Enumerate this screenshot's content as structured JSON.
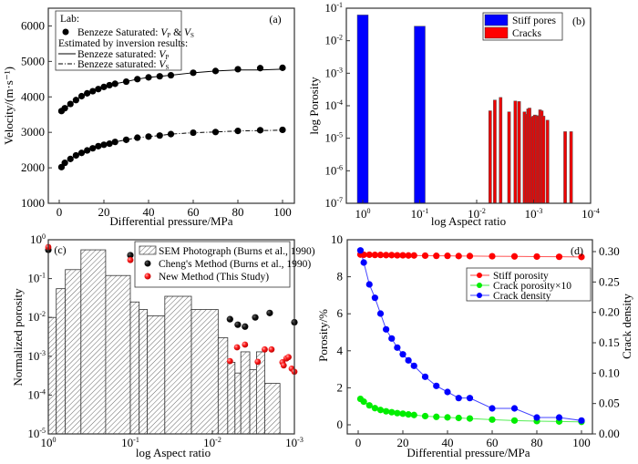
{
  "chart_data": [
    {
      "panel": "(a)",
      "type": "line",
      "xlabel": "Differential pressure/MPa",
      "ylabel": "Velocity/(m·s⁻¹)",
      "xlim": [
        0,
        100
      ],
      "ylim": [
        1000,
        6500
      ],
      "xticks": [
        0,
        20,
        40,
        60,
        80,
        100
      ],
      "yticks": [
        1000,
        2000,
        3000,
        4000,
        5000,
        6000
      ],
      "legend": {
        "position": "top-left",
        "title": "Lab:",
        "entries": [
          {
            "label": "Benzeze Saturated: VP & VS",
            "marker": "black-dot"
          },
          {
            "label": "Estimated by inversion results:",
            "marker": "none"
          },
          {
            "label": "Benzeze saturated: VP",
            "marker": "solid-line"
          },
          {
            "label": "Benzeze saturated: VS",
            "marker": "dash-dot-line"
          }
        ]
      },
      "x": [
        1,
        2.5,
        5,
        7.5,
        10,
        12.5,
        15,
        17.5,
        20,
        22.5,
        25,
        30,
        35,
        40,
        45,
        50,
        60,
        70,
        80,
        90,
        100
      ],
      "series": [
        {
          "name": "Lab VP",
          "values": [
            3600,
            3680,
            3800,
            3910,
            4020,
            4100,
            4160,
            4220,
            4280,
            4330,
            4370,
            4430,
            4500,
            4550,
            4580,
            4610,
            4680,
            4730,
            4780,
            4810,
            4820
          ]
        },
        {
          "name": "Inversion VP",
          "values": [
            3600,
            3680,
            3800,
            3910,
            4020,
            4100,
            4160,
            4220,
            4280,
            4330,
            4370,
            4430,
            4500,
            4550,
            4580,
            4610,
            4680,
            4730,
            4760,
            4760,
            4780
          ]
        },
        {
          "name": "Lab VS",
          "values": [
            2020,
            2140,
            2250,
            2350,
            2420,
            2490,
            2550,
            2610,
            2650,
            2680,
            2730,
            2790,
            2850,
            2880,
            2910,
            2950,
            2990,
            3010,
            3040,
            3060,
            3070
          ]
        },
        {
          "name": "Inversion VS",
          "values": [
            2020,
            2140,
            2250,
            2350,
            2420,
            2490,
            2550,
            2610,
            2650,
            2680,
            2730,
            2790,
            2850,
            2880,
            2910,
            2950,
            2990,
            3010,
            3040,
            3050,
            3060
          ]
        }
      ]
    },
    {
      "panel": "(b)",
      "type": "bar",
      "xlabel": "log Aspect ratio",
      "ylabel": "log Porosity",
      "xscale": "log-reversed",
      "xlim": [
        1,
        0.0001
      ],
      "ylim": [
        1e-07,
        0.1
      ],
      "xticks": [
        "10⁰",
        "10⁻¹",
        "10⁻²",
        "10⁻³",
        "10⁻⁴"
      ],
      "yticks": [
        "10⁻¹",
        "10⁻²",
        "10⁻³",
        "10⁻⁴",
        "10⁻⁵",
        "10⁻⁶",
        "10⁻⁷"
      ],
      "legend": {
        "position": "top-right",
        "entries": [
          {
            "label": "Stiff pores",
            "color": "#0000ff"
          },
          {
            "label": "Cracks",
            "color": "#ff0000"
          }
        ]
      },
      "series": [
        {
          "name": "Stiff pores",
          "aspect_ratio": [
            1.0,
            0.1
          ],
          "values": [
            0.062,
            0.028
          ]
        },
        {
          "name": "Cracks",
          "aspect_ratio": [
            0.0058,
            0.0048,
            0.0038,
            0.0027,
            0.0021,
            0.0018,
            0.00145,
            0.00135,
            0.00125,
            0.00118,
            0.00108,
            0.00101,
            0.00095,
            0.00088,
            0.00083,
            0.00077,
            0.00072,
            0.00067,
            0.00057,
            0.00028,
            0.00022
          ],
          "values": [
            7e-05,
            0.00015,
            0.00018,
            6.5e-05,
            0.00014,
            0.000135,
            6.5e-05,
            5.5e-05,
            8e-05,
            8.5e-05,
            4.5e-05,
            4.8e-05,
            5.2e-05,
            5e-05,
            4.8e-05,
            7.5e-05,
            7e-05,
            4.8e-05,
            3.6e-05,
            1.6e-05,
            1.6e-05
          ]
        }
      ]
    },
    {
      "panel": "(c)",
      "type": "bar",
      "xlabel": "log Aspect ratio",
      "ylabel": "Normalized porosity",
      "xscale": "log-reversed",
      "xlim": [
        1,
        0.001
      ],
      "ylim": [
        1e-05,
        1
      ],
      "xticks": [
        "10⁰",
        "10⁻¹",
        "10⁻²",
        "10⁻³"
      ],
      "yticks": [
        "10⁰",
        "10⁻¹",
        "10⁻²",
        "10⁻³",
        "10⁻⁴",
        "10⁻⁵"
      ],
      "legend": {
        "position": "top-right",
        "entries": [
          {
            "label": "SEM Photograph (Burns et al., 1990)",
            "marker": "hatched-box"
          },
          {
            "label": "Cheng's Method (Burns et al., 1990)",
            "marker": "black-dot"
          },
          {
            "label": "New Method (This Study)",
            "marker": "red-dot"
          }
        ]
      },
      "sem_histogram": {
        "bins_aspect_ratio": [
          [
            1.0,
            0.8
          ],
          [
            0.8,
            0.62
          ],
          [
            0.62,
            0.4
          ],
          [
            0.4,
            0.2
          ],
          [
            0.2,
            0.1
          ],
          [
            0.1,
            0.078
          ],
          [
            0.078,
            0.062
          ],
          [
            0.062,
            0.038
          ],
          [
            0.038,
            0.018
          ],
          [
            0.018,
            0.0085
          ],
          [
            0.0085,
            0.0065
          ],
          [
            0.0065,
            0.0053
          ],
          [
            0.0053,
            0.0045
          ],
          [
            0.0045,
            0.0035
          ],
          [
            0.0035,
            0.0029
          ],
          [
            0.0029,
            0.0023
          ],
          [
            0.0023,
            0.0015
          ]
        ],
        "values": [
          0.01,
          0.055,
          0.17,
          0.55,
          0.12,
          0.025,
          0.016,
          0.011,
          0.035,
          0.016,
          0.003,
          0.0007,
          0.00037,
          0.0013,
          0.00045,
          0.0013,
          0.0002
        ]
      },
      "cheng_method": {
        "aspect_ratio": [
          1.0,
          0.1,
          0.0061,
          0.0049,
          0.004,
          0.003,
          0.002,
          0.001
        ],
        "values": [
          0.55,
          0.4,
          0.009,
          0.0065,
          0.0058,
          0.01,
          0.013,
          0.0075
        ]
      },
      "new_method": {
        "aspect_ratio": [
          1.0,
          0.1,
          0.0061,
          0.005,
          0.004,
          0.0028,
          0.0023,
          0.0019,
          0.0014,
          0.00135,
          0.00125,
          0.00118,
          0.00108,
          0.001
        ],
        "values": [
          0.65,
          0.3,
          0.00075,
          0.0017,
          0.002,
          0.00072,
          0.0015,
          0.0015,
          0.0007,
          0.00058,
          0.00088,
          0.00095,
          0.00048,
          0.0004
        ]
      }
    },
    {
      "panel": "(d)",
      "type": "line",
      "xlabel": "Differential pressure/MPa",
      "ylabel": "Porosity/%",
      "y2label": "Crack density",
      "xlim": [
        -5,
        105
      ],
      "ylim": [
        -0.5,
        10
      ],
      "y2lim": [
        0,
        0.32
      ],
      "xticks": [
        0,
        20,
        40,
        60,
        80,
        100
      ],
      "yticks": [
        0,
        2,
        4,
        6,
        8,
        10
      ],
      "y2ticks": [
        "0.00",
        "0.05",
        "0.10",
        "0.15",
        "0.20",
        "0.25",
        "0.30"
      ],
      "legend": {
        "position": "top-right",
        "entries": [
          {
            "label": "Stiff porosity",
            "color": "#ff0000"
          },
          {
            "label": "Crack porosity×10",
            "color": "#00ee00"
          },
          {
            "label": "Crack  density",
            "color": "#0000ff"
          }
        ]
      },
      "x": [
        1,
        2.5,
        5,
        7.5,
        10,
        12.5,
        15,
        17.5,
        20,
        22.5,
        25,
        30,
        35,
        40,
        45,
        50,
        60,
        70,
        80,
        90,
        100
      ],
      "series": [
        {
          "name": "Stiff porosity",
          "axis": "left",
          "values": [
            9.2,
            9.19,
            9.19,
            9.18,
            9.18,
            9.17,
            9.17,
            9.16,
            9.16,
            9.15,
            9.15,
            9.14,
            9.13,
            9.13,
            9.12,
            9.12,
            9.11,
            9.1,
            9.09,
            9.08,
            9.07
          ]
        },
        {
          "name": "Crack porosity×10",
          "axis": "left",
          "values": [
            1.4,
            1.25,
            1.05,
            0.9,
            0.8,
            0.73,
            0.68,
            0.63,
            0.6,
            0.56,
            0.53,
            0.47,
            0.43,
            0.4,
            0.37,
            0.34,
            0.28,
            0.23,
            0.2,
            0.18,
            0.16
          ]
        },
        {
          "name": "Crack density",
          "axis": "right",
          "values": [
            0.302,
            0.282,
            0.246,
            0.224,
            0.198,
            0.172,
            0.157,
            0.142,
            0.131,
            0.121,
            0.112,
            0.094,
            0.079,
            0.069,
            0.059,
            0.059,
            0.042,
            0.042,
            0.027,
            0.027,
            0.022
          ]
        }
      ]
    }
  ],
  "labels": {
    "a_panel": "(a)",
    "b_panel": "(b)",
    "c_panel": "(c)",
    "d_panel": "(d)",
    "a_leg_title": "Lab:",
    "a_leg_1": "Benzeze Saturated: ",
    "a_leg_2": "Estimated by inversion results:",
    "a_leg_3": "Benzeze saturated: ",
    "a_leg_4": "Benzeze saturated: ",
    "b_leg_1": "Stiff pores",
    "b_leg_2": "Cracks",
    "c_leg_1": "SEM Photograph (Burns et al., 1990)",
    "c_leg_2": "Cheng's Method (Burns et al., 1990)",
    "c_leg_3": "New Method (This Study)",
    "d_leg_1": "Stiff porosity",
    "d_leg_2": "Crack porosity×10",
    "d_leg_3": "Crack  density",
    "a_xlabel": "Differential pressure/MPa",
    "a_ylabel": "Velocity/(m·s⁻¹)",
    "b_xlabel": "log Aspect ratio",
    "b_ylabel": "log Porosity",
    "c_xlabel": "log Aspect ratio",
    "c_ylabel": "Normalized porosity",
    "d_xlabel": "Differential pressure/MPa",
    "d_ylabel": "Porosity/%",
    "d_y2label": "Crack density"
  }
}
